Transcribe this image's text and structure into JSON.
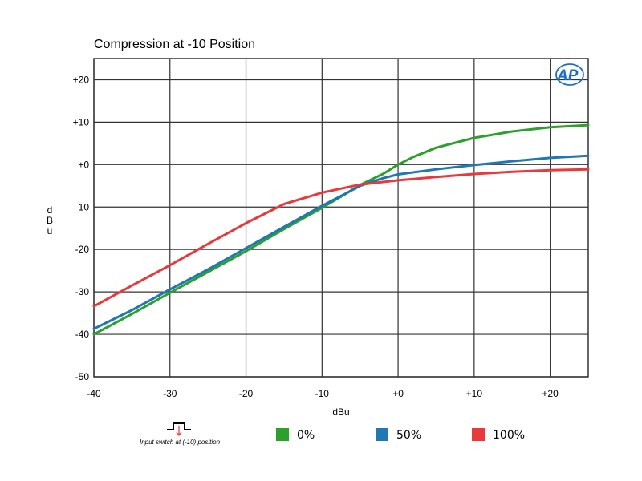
{
  "chart_data": {
    "type": "line",
    "title": "Compression at -10 Position",
    "xlabel": "dBu",
    "ylabel": "dBu",
    "xlim": [
      -40,
      25
    ],
    "ylim": [
      -50,
      25
    ],
    "x_ticks": [
      -40,
      -30,
      -20,
      -10,
      0,
      10,
      20
    ],
    "x_tick_labels": [
      "-40",
      "-30",
      "-20",
      "-10",
      "+0",
      "+10",
      "+20"
    ],
    "y_ticks": [
      20,
      10,
      0,
      -10,
      -20,
      -30,
      -40,
      -50
    ],
    "y_tick_labels": [
      "+20",
      "+10",
      "+0",
      "-10",
      "-20",
      "-30",
      "-40",
      "-50"
    ],
    "grid": true,
    "legend_position": "bottom",
    "series": [
      {
        "name": "0%",
        "color": "#2ca02c",
        "x": [
          -40,
          -35,
          -30,
          -25,
          -20,
          -15,
          -10,
          -7,
          -5,
          -2,
          0,
          2,
          5,
          10,
          15,
          20,
          25
        ],
        "y": [
          -40,
          -35.2,
          -30.2,
          -25.3,
          -20.4,
          -15.2,
          -10.2,
          -7,
          -4.8,
          -2.2,
          0,
          1.8,
          4,
          6.3,
          7.8,
          8.8,
          9.3
        ]
      },
      {
        "name": "50%",
        "color": "#1f77b4",
        "x": [
          -40,
          -35,
          -30,
          -25,
          -20,
          -15,
          -10,
          -7,
          -5,
          -2,
          0,
          5,
          10,
          15,
          20,
          25
        ],
        "y": [
          -38.7,
          -34.3,
          -29.4,
          -24.7,
          -19.7,
          -14.7,
          -9.7,
          -6.9,
          -5,
          -3.2,
          -2.3,
          -1.1,
          -0.1,
          0.8,
          1.6,
          2.1
        ]
      },
      {
        "name": "100%",
        "color": "#e8393c",
        "x": [
          -40,
          -35,
          -30,
          -25,
          -20,
          -15,
          -10,
          -5,
          0,
          5,
          10,
          15,
          20,
          25
        ],
        "y": [
          -33.4,
          -28.5,
          -23.7,
          -18.7,
          -13.8,
          -9.3,
          -6.6,
          -4.7,
          -3.7,
          -2.9,
          -2.2,
          -1.7,
          -1.3,
          -1.1
        ]
      }
    ],
    "annotation": "Input switch at (-10) position",
    "logo": "AP"
  }
}
